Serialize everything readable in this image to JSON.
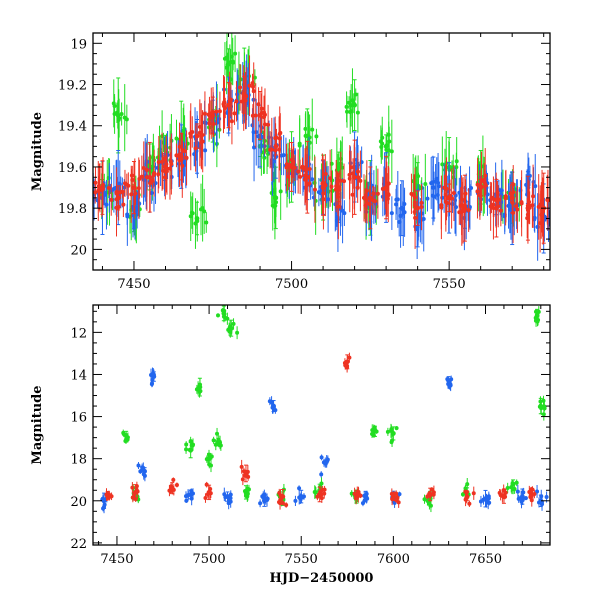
{
  "chart_data": [
    {
      "type": "scatter",
      "panel": "top",
      "title": "",
      "xlabel": "",
      "ylabel": "Magnitude",
      "xlim": [
        7437,
        7582
      ],
      "ylim": [
        20.1,
        18.95
      ],
      "y_inverted": true,
      "x_ticks": [
        7450,
        7500,
        7550
      ],
      "y_ticks": [
        19,
        19.2,
        19.4,
        19.6,
        19.8,
        20
      ],
      "y_tick_labels": [
        "19",
        "19.2",
        "19.4",
        "19.6",
        "19.8",
        "20"
      ],
      "error_bars": true,
      "series": [
        {
          "color": "#22dd22",
          "x": [
            7440,
            7445,
            7450,
            7455,
            7460,
            7465,
            7470,
            7475,
            7480,
            7485,
            7490,
            7495,
            7500,
            7505,
            7510,
            7515,
            7520,
            7525,
            7530,
            7540,
            7550,
            7560,
            7570
          ],
          "y": [
            19.7,
            19.35,
            19.8,
            19.6,
            19.5,
            19.45,
            19.85,
            19.4,
            19.1,
            19.2,
            19.5,
            19.75,
            19.6,
            19.45,
            19.7,
            19.6,
            19.3,
            19.75,
            19.5,
            19.7,
            19.6,
            19.65,
            19.75
          ]
        },
        {
          "color": "#2266ee",
          "x": [
            7440,
            7445,
            7450,
            7455,
            7460,
            7465,
            7470,
            7475,
            7480,
            7485,
            7490,
            7495,
            7500,
            7505,
            7510,
            7515,
            7520,
            7525,
            7530,
            7535,
            7540,
            7545,
            7550,
            7555,
            7560,
            7565,
            7570,
            7575,
            7580
          ],
          "y": [
            19.75,
            19.7,
            19.8,
            19.65,
            19.6,
            19.55,
            19.5,
            19.35,
            19.3,
            19.25,
            19.45,
            19.55,
            19.6,
            19.65,
            19.7,
            19.8,
            19.6,
            19.75,
            19.7,
            19.8,
            19.85,
            19.7,
            19.75,
            19.8,
            19.7,
            19.75,
            19.8,
            19.7,
            19.85
          ]
        },
        {
          "color": "#ee3322",
          "x": [
            7440,
            7445,
            7450,
            7455,
            7460,
            7465,
            7470,
            7475,
            7480,
            7485,
            7490,
            7495,
            7500,
            7505,
            7510,
            7515,
            7520,
            7525,
            7530,
            7540,
            7550,
            7555,
            7560,
            7565,
            7570,
            7575,
            7580
          ],
          "y": [
            19.7,
            19.75,
            19.7,
            19.65,
            19.6,
            19.55,
            19.45,
            19.35,
            19.3,
            19.25,
            19.35,
            19.5,
            19.6,
            19.65,
            19.7,
            19.7,
            19.65,
            19.75,
            19.7,
            19.8,
            19.75,
            19.8,
            19.7,
            19.8,
            19.75,
            19.8,
            19.8
          ]
        }
      ]
    },
    {
      "type": "scatter",
      "panel": "bottom",
      "title": "",
      "xlabel": "HJD−2450000",
      "ylabel": "Magnitude",
      "xlim": [
        7437,
        7685
      ],
      "ylim": [
        22.1,
        10.7
      ],
      "y_inverted": true,
      "x_ticks": [
        7450,
        7500,
        7550,
        7600,
        7650
      ],
      "y_ticks": [
        12,
        14,
        16,
        18,
        20,
        22
      ],
      "y_tick_labels": [
        "12",
        "14",
        "16",
        "18",
        "20",
        "22"
      ],
      "error_bars": true,
      "series": [
        {
          "color": "#22dd22",
          "x": [
            7455,
            7460,
            7490,
            7495,
            7500,
            7505,
            7508,
            7512,
            7520,
            7540,
            7560,
            7580,
            7590,
            7600,
            7620,
            7640,
            7665,
            7678,
            7680
          ],
          "y": [
            16.9,
            19.6,
            17.6,
            14.6,
            18.0,
            17.2,
            11.1,
            11.8,
            19.6,
            19.9,
            19.5,
            19.8,
            16.7,
            16.8,
            19.9,
            19.6,
            19.2,
            11.2,
            15.5
          ]
        },
        {
          "color": "#2266ee",
          "x": [
            7443,
            7465,
            7470,
            7490,
            7510,
            7530,
            7535,
            7550,
            7563,
            7585,
            7600,
            7630,
            7650,
            7670,
            7680
          ],
          "y": [
            20.0,
            18.6,
            14.1,
            19.7,
            19.8,
            20.0,
            15.5,
            19.8,
            18.2,
            19.8,
            19.8,
            14.3,
            19.9,
            19.8,
            20.0
          ]
        },
        {
          "color": "#ee3322",
          "x": [
            7445,
            7460,
            7480,
            7500,
            7520,
            7540,
            7560,
            7575,
            7580,
            7600,
            7620,
            7640,
            7660,
            7675
          ],
          "y": [
            19.7,
            19.6,
            19.4,
            19.6,
            18.7,
            19.8,
            19.7,
            13.4,
            19.7,
            19.8,
            19.7,
            19.8,
            19.8,
            19.7
          ]
        }
      ]
    }
  ]
}
